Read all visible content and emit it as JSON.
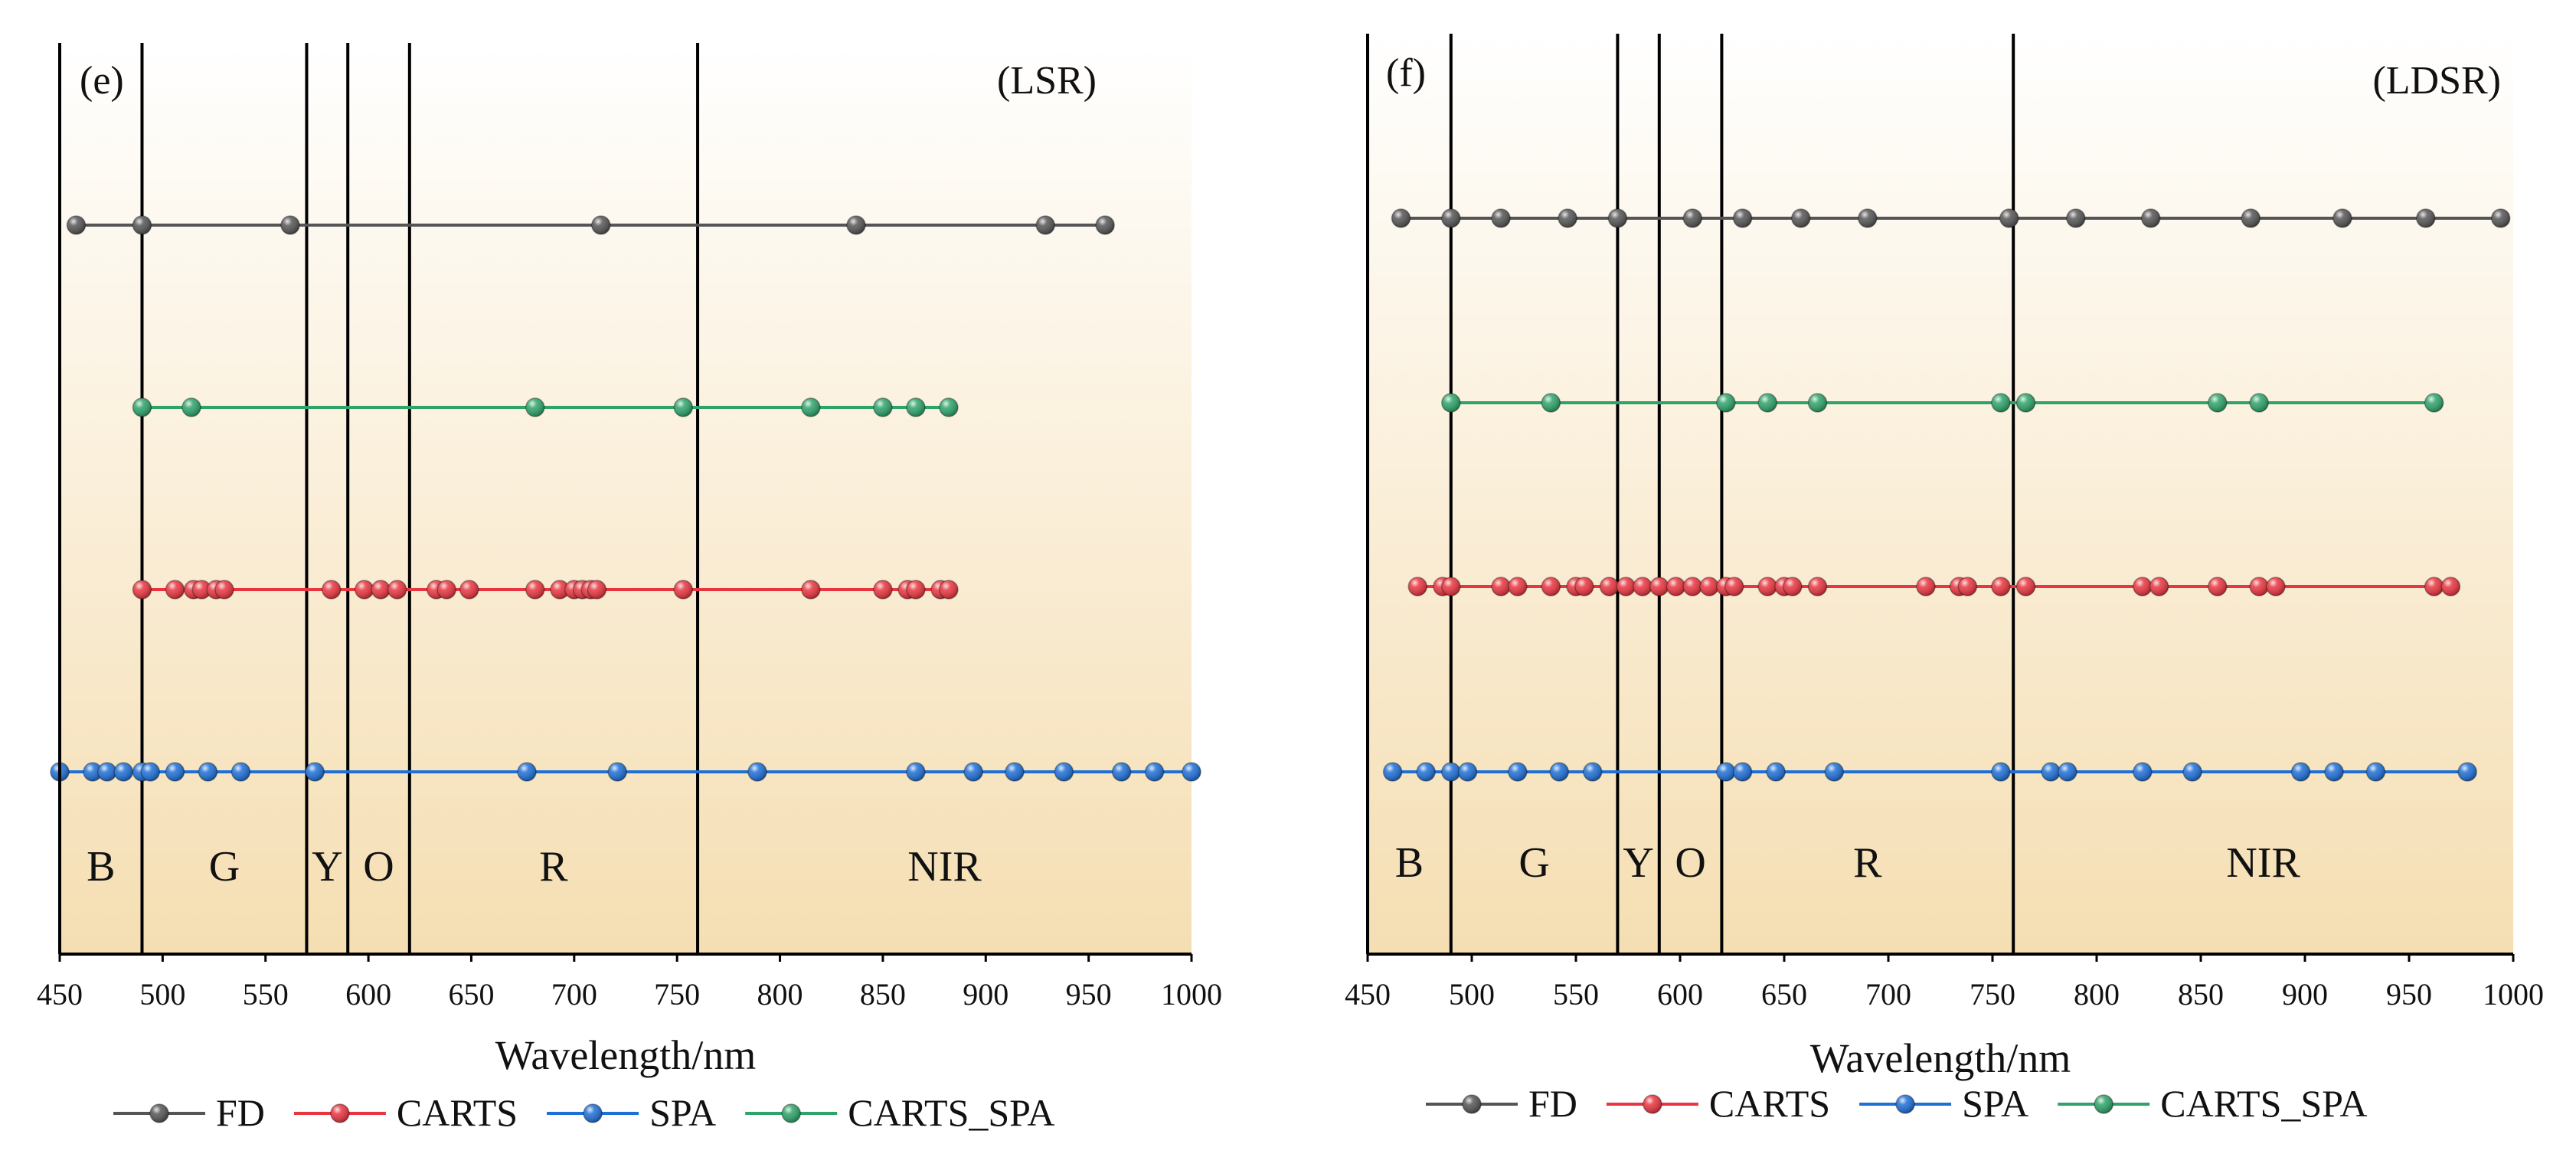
{
  "figure_title": "",
  "colors": {
    "background_top": "#ffffff",
    "background_bottom": "#f5deb2",
    "FD": "#555555",
    "CARTS": "#e8353f",
    "SPA": "#1e6fd6",
    "CARTS_SPA": "#2ea36a"
  },
  "chart_data": [
    {
      "type": "scatter",
      "panel": "(e)",
      "dataset": "(LSR)",
      "xlabel": "Wavelength/nm",
      "ylabel": "",
      "xlim": [
        450,
        1000
      ],
      "xticks": [
        450,
        500,
        550,
        600,
        650,
        700,
        750,
        800,
        850,
        900,
        950,
        1000
      ],
      "grid": false,
      "band_boundaries": [
        490,
        570,
        590,
        620,
        760
      ],
      "bands": [
        {
          "label": "B",
          "center": 470
        },
        {
          "label": "G",
          "center": 530
        },
        {
          "label": "Y",
          "center": 580
        },
        {
          "label": "O",
          "center": 605
        },
        {
          "label": "R",
          "center": 690
        },
        {
          "label": "NIR",
          "center": 880
        }
      ],
      "series": [
        {
          "name": "FD",
          "color": "#555555",
          "x": [
            458,
            490,
            562,
            713,
            837,
            929,
            958
          ]
        },
        {
          "name": "CARTS_SPA",
          "color": "#2ea36a",
          "x": [
            490,
            514,
            681,
            753,
            815,
            850,
            866,
            882
          ]
        },
        {
          "name": "CARTS",
          "color": "#e8353f",
          "x": [
            490,
            506,
            515,
            519,
            526,
            530,
            582,
            598,
            606,
            614,
            633,
            638,
            649,
            681,
            693,
            700,
            704,
            708,
            711,
            753,
            815,
            850,
            862,
            866,
            878,
            882
          ]
        },
        {
          "name": "SPA",
          "color": "#1e6fd6",
          "x": [
            450,
            466,
            473,
            481,
            490,
            494,
            506,
            522,
            538,
            574,
            677,
            721,
            789,
            866,
            894,
            914,
            938,
            966,
            982,
            1000
          ]
        }
      ],
      "legend": {
        "entries": [
          "FD",
          "CARTS",
          "SPA",
          "CARTS_SPA"
        ],
        "placement": "bottom"
      }
    },
    {
      "type": "scatter",
      "panel": "(f)",
      "dataset": "(LDSR)",
      "xlabel": "Wavelength/nm",
      "ylabel": "",
      "xlim": [
        450,
        1000
      ],
      "xticks": [
        450,
        500,
        550,
        600,
        650,
        700,
        750,
        800,
        850,
        900,
        950,
        1000
      ],
      "grid": false,
      "band_boundaries": [
        490,
        570,
        590,
        620,
        760
      ],
      "bands": [
        {
          "label": "B",
          "center": 470
        },
        {
          "label": "G",
          "center": 530
        },
        {
          "label": "Y",
          "center": 580
        },
        {
          "label": "O",
          "center": 605
        },
        {
          "label": "R",
          "center": 690
        },
        {
          "label": "NIR",
          "center": 880
        }
      ],
      "series": [
        {
          "name": "FD",
          "color": "#555555",
          "x": [
            466,
            490,
            514,
            546,
            570,
            606,
            630,
            658,
            690,
            758,
            790,
            826,
            874,
            918,
            958,
            994
          ]
        },
        {
          "name": "CARTS_SPA",
          "color": "#2ea36a",
          "x": [
            490,
            538,
            622,
            642,
            666,
            754,
            766,
            858,
            878,
            962
          ]
        },
        {
          "name": "CARTS",
          "color": "#e8353f",
          "x": [
            474,
            486,
            490,
            514,
            522,
            538,
            550,
            554,
            566,
            574,
            582,
            590,
            598,
            606,
            614,
            622,
            626,
            642,
            650,
            654,
            666,
            718,
            734,
            738,
            754,
            766,
            822,
            830,
            858,
            878,
            886,
            962,
            970
          ]
        },
        {
          "name": "SPA",
          "color": "#1e6fd6",
          "x": [
            462,
            478,
            490,
            498,
            522,
            542,
            558,
            622,
            630,
            646,
            674,
            754,
            778,
            786,
            822,
            846,
            898,
            914,
            934,
            978
          ]
        }
      ],
      "legend": {
        "entries": [
          "FD",
          "CARTS",
          "SPA",
          "CARTS_SPA"
        ],
        "placement": "bottom"
      }
    }
  ]
}
